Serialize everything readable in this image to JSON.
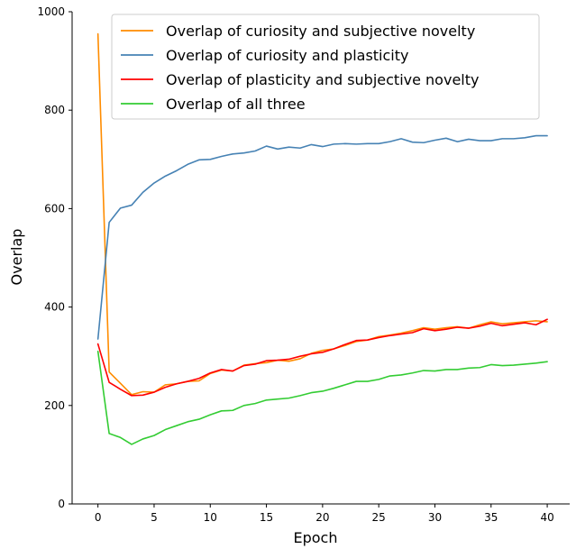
{
  "chart_data": {
    "type": "line",
    "title": "",
    "xlabel": "Epoch",
    "ylabel": "Overlap",
    "xlim": [
      -2.3,
      42.0
    ],
    "ylim": [
      0,
      1000
    ],
    "xticks": [
      0,
      5,
      10,
      15,
      20,
      25,
      30,
      35,
      40
    ],
    "yticks": [
      0,
      200,
      400,
      600,
      800,
      1000
    ],
    "grid": false,
    "legend_position": "top-right",
    "x": [
      0,
      1,
      2,
      3,
      4,
      5,
      6,
      7,
      8,
      9,
      10,
      11,
      12,
      13,
      14,
      15,
      16,
      17,
      18,
      19,
      20,
      21,
      22,
      23,
      24,
      25,
      26,
      27,
      28,
      29,
      30,
      31,
      32,
      33,
      34,
      35,
      36,
      37,
      38,
      39,
      40
    ],
    "series": [
      {
        "name": "Overlap of curiosity and subjective novelty",
        "color": "#ff8c00",
        "values": [
          955,
          268,
          245,
          222,
          228,
          227,
          242,
          244,
          249,
          250,
          265,
          272,
          270,
          282,
          285,
          287,
          292,
          290,
          295,
          306,
          312,
          315,
          322,
          330,
          333,
          340,
          343,
          347,
          352,
          358,
          355,
          358,
          360,
          357,
          364,
          370,
          366,
          368,
          370,
          372,
          370
        ]
      },
      {
        "name": "Overlap of curiosity and plasticity",
        "color": "#4682b4",
        "values": [
          335,
          572,
          601,
          607,
          633,
          652,
          666,
          677,
          690,
          699,
          700,
          706,
          711,
          713,
          717,
          727,
          721,
          725,
          723,
          730,
          726,
          731,
          732,
          731,
          732,
          732,
          736,
          742,
          735,
          734,
          739,
          743,
          736,
          741,
          738,
          738,
          742,
          742,
          744,
          748,
          748
        ]
      },
      {
        "name": "Overlap of plasticity and subjective novelty",
        "color": "#ff0000",
        "values": [
          325,
          247,
          233,
          220,
          221,
          227,
          237,
          244,
          249,
          255,
          266,
          273,
          270,
          281,
          284,
          291,
          292,
          294,
          300,
          305,
          308,
          315,
          324,
          332,
          333,
          338,
          342,
          345,
          348,
          356,
          352,
          355,
          359,
          357,
          361,
          367,
          362,
          365,
          368,
          364,
          375
        ]
      },
      {
        "name": "Overlap of all three",
        "color": "#33cc33",
        "values": [
          310,
          143,
          135,
          121,
          132,
          139,
          151,
          159,
          167,
          172,
          181,
          189,
          190,
          200,
          204,
          211,
          213,
          215,
          220,
          226,
          229,
          235,
          242,
          249,
          249,
          253,
          260,
          262,
          266,
          271,
          270,
          273,
          273,
          276,
          277,
          283,
          281,
          282,
          284,
          286,
          289
        ]
      }
    ]
  }
}
